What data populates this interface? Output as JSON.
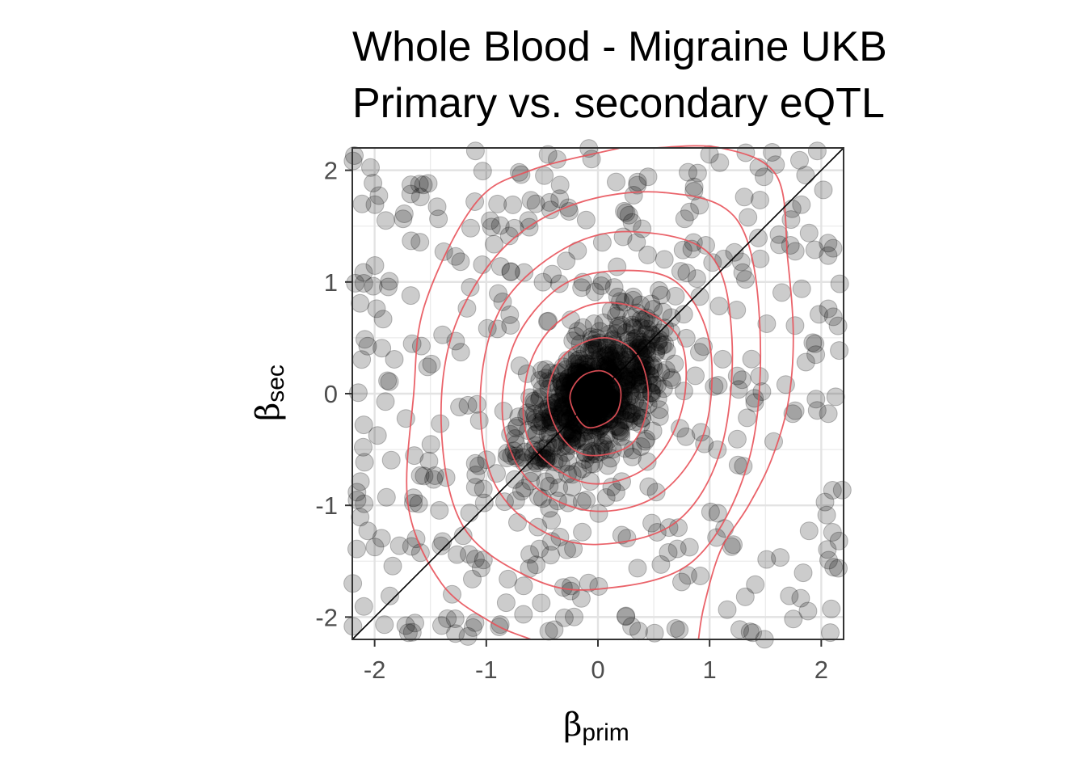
{
  "chart_data": {
    "type": "scatter",
    "title": [
      "Whole Blood - Migraine UKB",
      "Primary vs. secondary eQTL"
    ],
    "xlabel": {
      "symbol": "β",
      "subscript": "prim"
    },
    "ylabel": {
      "symbol": "β",
      "subscript": "sec"
    },
    "xlim": [
      -2.2,
      2.2
    ],
    "ylim": [
      -2.2,
      2.2
    ],
    "x_ticks": [
      -2,
      -1,
      0,
      1,
      2
    ],
    "y_ticks": [
      -2,
      -1,
      0,
      1,
      2
    ],
    "x_tick_labels": [
      "-2",
      "-1",
      "0",
      "1",
      "2"
    ],
    "y_tick_labels": [
      "-2",
      "-1",
      "0",
      "1",
      "2"
    ],
    "grid": true,
    "reference_line": {
      "slope": 1,
      "intercept": 0,
      "color": "#000000"
    },
    "point_color": "#000000",
    "point_opacity": 0.2,
    "density_contour_color": "#e8525a",
    "density_contours": [
      [
        [
          -0.1,
          -0.3
        ],
        [
          0.15,
          -0.2
        ],
        [
          0.2,
          0.05
        ],
        [
          0.05,
          0.2
        ],
        [
          -0.15,
          0.15
        ],
        [
          -0.25,
          -0.05
        ]
      ],
      [
        [
          -0.1,
          -0.55
        ],
        [
          0.3,
          -0.45
        ],
        [
          0.45,
          -0.05
        ],
        [
          0.35,
          0.35
        ],
        [
          0.05,
          0.5
        ],
        [
          -0.3,
          0.35
        ],
        [
          -0.45,
          0.0
        ],
        [
          -0.35,
          -0.35
        ]
      ],
      [
        [
          -0.1,
          -0.8
        ],
        [
          0.45,
          -0.65
        ],
        [
          0.75,
          -0.15
        ],
        [
          0.75,
          0.45
        ],
        [
          0.4,
          0.75
        ],
        [
          -0.05,
          0.8
        ],
        [
          -0.45,
          0.55
        ],
        [
          -0.65,
          0.1
        ],
        [
          -0.6,
          -0.45
        ]
      ],
      [
        [
          -0.05,
          -1.05
        ],
        [
          0.55,
          -0.9
        ],
        [
          0.95,
          -0.35
        ],
        [
          1.0,
          0.45
        ],
        [
          0.7,
          1.0
        ],
        [
          0.15,
          1.1
        ],
        [
          -0.35,
          0.95
        ],
        [
          -0.75,
          0.45
        ],
        [
          -0.85,
          -0.25
        ],
        [
          -0.6,
          -0.8
        ]
      ],
      [
        [
          0.0,
          -1.35
        ],
        [
          0.7,
          -1.15
        ],
        [
          1.1,
          -0.5
        ],
        [
          1.2,
          0.5
        ],
        [
          1.0,
          1.25
        ],
        [
          0.3,
          1.45
        ],
        [
          -0.3,
          1.3
        ],
        [
          -0.85,
          0.8
        ],
        [
          -1.05,
          0.05
        ],
        [
          -0.95,
          -0.75
        ],
        [
          -0.55,
          -1.2
        ]
      ],
      [
        [
          0.0,
          -1.75
        ],
        [
          0.85,
          -1.5
        ],
        [
          1.35,
          -0.6
        ],
        [
          1.45,
          0.6
        ],
        [
          1.25,
          1.55
        ],
        [
          0.6,
          1.8
        ],
        [
          -0.2,
          1.7
        ],
        [
          -0.85,
          1.3
        ],
        [
          -1.3,
          0.55
        ],
        [
          -1.4,
          -0.35
        ],
        [
          -1.2,
          -1.2
        ],
        [
          -0.6,
          -1.65
        ]
      ],
      [
        [
          -0.6,
          -2.2
        ],
        [
          -0.95,
          -2.05
        ],
        [
          -1.4,
          -1.7
        ],
        [
          -1.7,
          -1.0
        ],
        [
          -1.65,
          0.0
        ],
        [
          -1.55,
          0.8
        ],
        [
          -1.1,
          1.7
        ],
        [
          -0.6,
          2.0
        ],
        [
          0.2,
          2.2
        ]
      ],
      [
        [
          0.5,
          2.2
        ],
        [
          1.1,
          2.2
        ],
        [
          1.6,
          1.95
        ],
        [
          1.7,
          1.2
        ],
        [
          1.75,
          0.5
        ],
        [
          1.7,
          -0.1
        ],
        [
          1.55,
          -0.6
        ],
        [
          1.35,
          -1.0
        ],
        [
          1.1,
          -1.4
        ],
        [
          0.95,
          -1.9
        ],
        [
          0.9,
          -2.2
        ]
      ]
    ]
  }
}
